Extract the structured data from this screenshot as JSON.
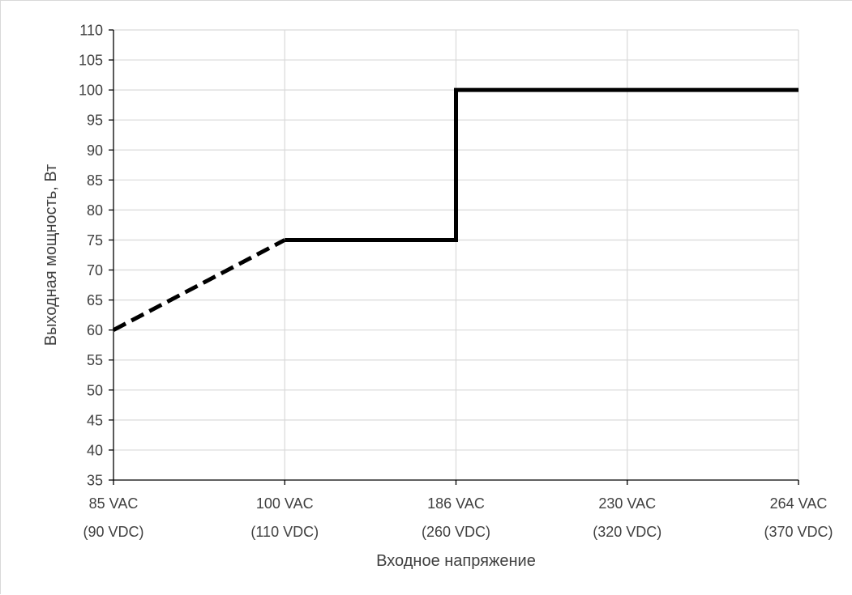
{
  "chart_data": {
    "type": "line",
    "title": "",
    "xlabel": "Входное напряжение",
    "ylabel": "Выходная мощность, Вт",
    "categories": [
      [
        "85 VAC",
        "(90 VDC)"
      ],
      [
        "100 VAC",
        "(110 VDC)"
      ],
      [
        "186 VAC",
        "(260 VDC)"
      ],
      [
        "230 VAC",
        "(320 VDC)"
      ],
      [
        "264 VAC",
        "(370 VDC)"
      ]
    ],
    "ylim": [
      35,
      110
    ],
    "ystep": 5,
    "grid": true,
    "legend": "none",
    "series": [
      {
        "style": "dashed",
        "points": [
          {
            "x": "85 VAC",
            "y": 60
          },
          {
            "x": "100 VAC",
            "y": 75
          }
        ]
      },
      {
        "style": "solid-step",
        "points": [
          {
            "x": "100 VAC",
            "y": 75
          },
          {
            "x": "186 VAC",
            "y": 75
          },
          {
            "x": "186 VAC",
            "y": 100
          },
          {
            "x": "264 VAC",
            "y": 100
          }
        ]
      }
    ],
    "colors": {
      "line": "#000000",
      "grid": "#d9d9d9",
      "axis": "#000000",
      "text": "#404040"
    }
  }
}
